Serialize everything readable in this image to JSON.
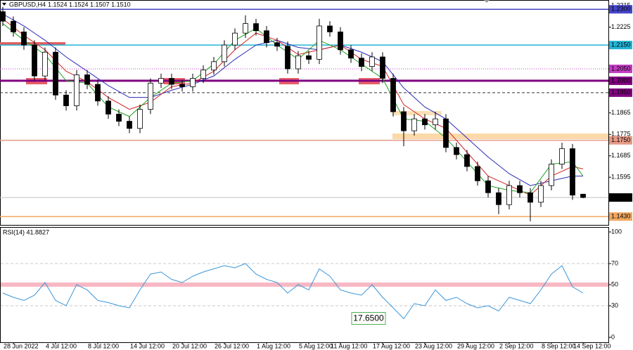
{
  "chart_data": [
    {
      "type": "candlestick",
      "title": "GBPUSD,H4",
      "quote": "1.1524 1.1524 1.1507 1.1510",
      "categories": [
        null,
        "28 Jun 2022",
        null,
        null,
        null,
        "4 Jul 12:00",
        null,
        null,
        null,
        "8 Jul 12:00",
        null,
        null,
        null,
        "14 Jul 12:00",
        null,
        null,
        null,
        "20 Jul 12:00",
        null,
        null,
        null,
        "26 Jul 12:00",
        null,
        null,
        null,
        "1 Aug 12:00",
        null,
        null,
        null,
        "5 Aug 12:00",
        null,
        null,
        "11 Aug 12:00",
        null,
        null,
        null,
        "17 Aug 12:00",
        null,
        null,
        null,
        "23 Aug 12:00",
        null,
        null,
        null,
        "29 Aug 12:00",
        null,
        null,
        null,
        "2 Sep 12:00",
        null,
        null,
        null,
        "8 Sep 12:00",
        null,
        null,
        "14 Sep 12:00"
      ],
      "open": [
        1.229,
        1.225,
        1.2205,
        1.215,
        1.202,
        1.212,
        1.194,
        1.1895,
        1.2025,
        1.1985,
        1.1915,
        1.186,
        1.183,
        1.18,
        1.188,
        1.199,
        1.201,
        1.1985,
        1.1975,
        1.201,
        1.2045,
        1.208,
        1.215,
        1.22,
        1.224,
        1.221,
        1.216,
        1.2145,
        1.205,
        1.2105,
        1.209,
        1.223,
        1.2205,
        1.213,
        1.2095,
        1.206,
        1.21,
        1.201,
        1.187,
        1.179,
        1.184,
        1.1815,
        1.184,
        1.172,
        1.169,
        1.164,
        1.158,
        1.153,
        1.148,
        1.156,
        1.153,
        1.149,
        1.156,
        1.165,
        1.1715,
        1.1524
      ],
      "high": [
        1.231,
        1.227,
        1.2225,
        1.217,
        1.214,
        1.214,
        1.196,
        1.2045,
        1.2045,
        1.2005,
        1.1935,
        1.188,
        1.185,
        1.19,
        1.201,
        1.203,
        1.203,
        1.2005,
        1.203,
        1.2065,
        1.21,
        1.217,
        1.222,
        1.2275,
        1.226,
        1.223,
        1.218,
        1.2165,
        1.2125,
        1.2125,
        1.226,
        1.225,
        1.2225,
        1.215,
        1.2115,
        1.212,
        1.212,
        1.203,
        1.189,
        1.186,
        1.186,
        1.187,
        1.186,
        1.174,
        1.171,
        1.166,
        1.16,
        1.155,
        1.158,
        1.158,
        1.155,
        1.158,
        1.167,
        1.174,
        1.1735,
        1.1524
      ],
      "low": [
        1.223,
        1.2185,
        1.213,
        1.2,
        1.2,
        1.192,
        1.1875,
        1.1875,
        1.1965,
        1.1895,
        1.184,
        1.181,
        1.178,
        1.178,
        1.186,
        1.197,
        1.1965,
        1.1955,
        1.1955,
        1.199,
        1.2025,
        1.206,
        1.213,
        1.218,
        1.219,
        1.214,
        1.2125,
        1.203,
        1.203,
        1.207,
        1.207,
        1.2185,
        1.211,
        1.2075,
        1.204,
        1.204,
        1.199,
        1.185,
        1.1725,
        1.177,
        1.1795,
        1.1795,
        1.17,
        1.167,
        1.162,
        1.156,
        1.151,
        1.144,
        1.146,
        1.151,
        1.141,
        1.147,
        1.154,
        1.163,
        1.15,
        1.1507
      ],
      "close": [
        1.225,
        1.2205,
        1.215,
        1.202,
        1.212,
        1.194,
        1.1895,
        1.2025,
        1.1985,
        1.1915,
        1.186,
        1.183,
        1.18,
        1.188,
        1.199,
        1.201,
        1.1985,
        1.1975,
        1.201,
        1.2045,
        1.208,
        1.215,
        1.22,
        1.224,
        1.221,
        1.216,
        1.2145,
        1.205,
        1.2105,
        1.209,
        1.223,
        1.2205,
        1.213,
        1.2095,
        1.206,
        1.21,
        1.201,
        1.187,
        1.179,
        1.184,
        1.1815,
        1.184,
        1.172,
        1.169,
        1.164,
        1.158,
        1.153,
        1.148,
        1.156,
        1.153,
        1.149,
        1.156,
        1.165,
        1.1715,
        1.152,
        1.151
      ],
      "up_color": "#ffffff",
      "down_color": "#000000",
      "overlays": [
        {
          "color": "#2a2ab8",
          "values": [
            1.228,
            1.2255,
            1.223,
            1.22,
            1.217,
            1.2135,
            1.21,
            1.207,
            1.204,
            1.201,
            1.198,
            1.1955,
            1.193,
            1.193,
            1.193,
            1.1945,
            1.196,
            1.1973,
            1.1985,
            1.2003,
            1.202,
            1.2055,
            1.209,
            1.212,
            1.215,
            1.216,
            1.217,
            1.2155,
            1.214,
            1.2135,
            1.213,
            1.214,
            1.215,
            1.2135,
            1.212,
            1.21,
            1.208,
            1.2025,
            1.197,
            1.193,
            1.189,
            1.1865,
            1.184,
            1.18,
            1.176,
            1.172,
            1.168,
            1.1645,
            1.161,
            1.1585,
            1.156,
            1.157,
            1.158,
            1.159,
            1.16,
            1.16
          ]
        },
        {
          "color": "#d02020",
          "values": [
            1.226,
            1.2225,
            1.219,
            1.216,
            1.213,
            1.2085,
            1.204,
            1.2018,
            1.1995,
            1.1963,
            1.193,
            1.1905,
            1.188,
            1.1895,
            1.191,
            1.1943,
            1.1975,
            1.1983,
            1.199,
            1.2015,
            1.204,
            1.2085,
            1.213,
            1.2165,
            1.22,
            1.2185,
            1.217,
            1.214,
            1.211,
            1.212,
            1.213,
            1.214,
            1.215,
            1.212,
            1.209,
            1.2075,
            1.206,
            1.198,
            1.19,
            1.187,
            1.184,
            1.182,
            1.18,
            1.175,
            1.17,
            1.165,
            1.16,
            1.158,
            1.156,
            1.154,
            1.152,
            1.156,
            1.16,
            1.162,
            1.164,
            1.163
          ]
        },
        {
          "color": "#20a020",
          "values": [
            1.224,
            1.2205,
            1.217,
            1.214,
            1.211,
            1.2055,
            1.2,
            1.1995,
            1.199,
            1.194,
            1.189,
            1.187,
            1.185,
            1.189,
            1.193,
            1.196,
            1.199,
            1.1995,
            1.2,
            1.2035,
            1.207,
            1.212,
            1.217,
            1.2195,
            1.222,
            1.2185,
            1.215,
            1.212,
            1.209,
            1.213,
            1.217,
            1.215,
            1.213,
            1.21,
            1.207,
            1.204,
            1.201,
            1.1925,
            1.184,
            1.1835,
            1.183,
            1.1795,
            1.176,
            1.171,
            1.166,
            1.161,
            1.156,
            1.155,
            1.154,
            1.1535,
            1.153,
            1.159,
            1.165,
            1.1655,
            1.166,
            1.16
          ]
        }
      ],
      "ylim": [
        1.1395,
        1.2339
      ],
      "yticks": [
        1.2315,
        1.2225,
        1.1865,
        1.1775,
        1.1685,
        1.1595
      ],
      "levels": [
        {
          "value": 1.23,
          "label": "1.2300",
          "color": "#4545c8",
          "style": "solid",
          "width": 1.5
        },
        {
          "value": 1.215,
          "label": "1.2150",
          "color": "#22b4d6",
          "style": "solid",
          "width": 1.5
        },
        {
          "value": 1.205,
          "label": "1.2050",
          "color": "#c23cc2",
          "style": "dotted",
          "width": 1
        },
        {
          "value": 1.2,
          "label": "1.2000",
          "color": "#800080",
          "style": "solid",
          "width": 3
        },
        {
          "value": 1.195,
          "label": "1.1950",
          "color": "#333333",
          "label_color": "#800080",
          "style": "dashed",
          "width": 1
        },
        {
          "value": 1.175,
          "label": "1.1750",
          "color": "#e59a86",
          "style": "solid",
          "width": 1.5
        },
        {
          "value": 1.151,
          "label": "1.1510",
          "color": "#c0c0c0",
          "label_color": "#000000",
          "style": "solid",
          "width": 1
        },
        {
          "value": 1.143,
          "label": "1.1430",
          "color": "#f0a860",
          "style": "solid",
          "width": 1.5
        }
      ]
    },
    {
      "type": "line",
      "title": "RSI(14) 41.8827",
      "color": "#3c96d8",
      "values": [
        42,
        38,
        35,
        40,
        52,
        35,
        30,
        50,
        45,
        35,
        33,
        30,
        28,
        45,
        60,
        62,
        55,
        52,
        58,
        62,
        65,
        68,
        66,
        70,
        60,
        55,
        52,
        42,
        50,
        45,
        65,
        58,
        45,
        42,
        40,
        50,
        38,
        28,
        17.65,
        32,
        30,
        45,
        35,
        38,
        32,
        28,
        30,
        25,
        38,
        35,
        32,
        45,
        60,
        68,
        48,
        42
      ],
      "annotation": "17.6500",
      "ylim": [
        0,
        100
      ],
      "yticks": [
        0,
        30,
        50,
        70,
        100
      ],
      "levels": [
        {
          "value": 70,
          "style": "dashed"
        },
        {
          "value": 50,
          "style": "band"
        },
        {
          "value": 30,
          "style": "dashed"
        }
      ]
    }
  ]
}
